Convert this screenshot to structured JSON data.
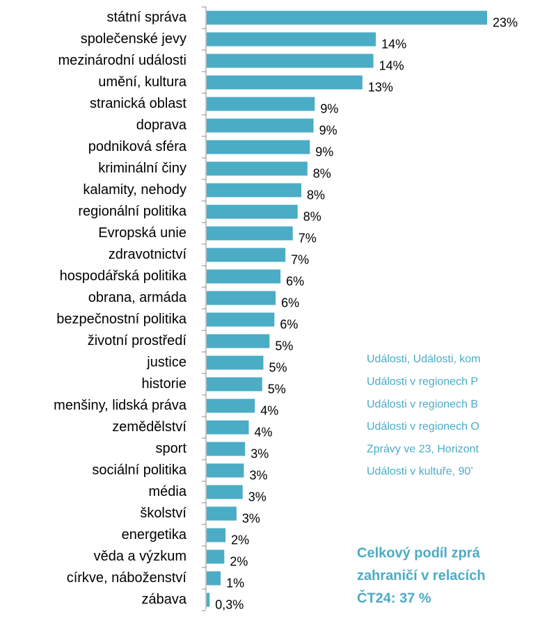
{
  "chart_data": {
    "type": "barh",
    "categories": [
      "státní správa",
      "společenské jevy",
      "mezinárodní události",
      "umění, kultura",
      "stranická oblast",
      "doprava",
      "podniková sféra",
      "kriminální činy",
      "kalamity, nehody",
      "regionální politika",
      "Evropská unie",
      "zdravotnictví",
      "hospodářská politika",
      "obrana, armáda",
      "bezpečnostní politika",
      "životní prostředí",
      "justice",
      "historie",
      "menšiny, lidská práva",
      "zemědělství",
      "sport",
      "sociální politika",
      "média",
      "školství",
      "energetika",
      "věda a výzkum",
      "církve, náboženství",
      "zábava"
    ],
    "values": [
      23.0,
      13.9,
      13.7,
      12.8,
      8.9,
      8.8,
      8.5,
      8.3,
      7.8,
      7.5,
      7.1,
      6.5,
      6.1,
      5.7,
      5.6,
      5.2,
      4.7,
      4.6,
      4.0,
      3.5,
      3.2,
      3.1,
      3.0,
      2.5,
      1.6,
      1.5,
      1.2,
      0.3
    ],
    "value_labels": [
      "23%",
      "14%",
      "14%",
      "13%",
      "9%",
      "9%",
      "9%",
      "8%",
      "8%",
      "8%",
      "7%",
      "7%",
      "6%",
      "6%",
      "6%",
      "5%",
      "5%",
      "5%",
      "4%",
      "4%",
      "3%",
      "3%",
      "3%",
      "3%",
      "2%",
      "2%",
      "1%",
      "0,3%"
    ],
    "color": "#4bacc6",
    "annotations": [
      "Události, Události, kom",
      "Události v regionech P",
      "Události v regionech B",
      "Události v regionech O",
      "Zprávy ve 23, Horizont",
      "Události v kultuře, 90’"
    ],
    "note": [
      "Celkový podíl zprá",
      "zahraničí v relacích",
      "ČT24: 37 %"
    ]
  }
}
